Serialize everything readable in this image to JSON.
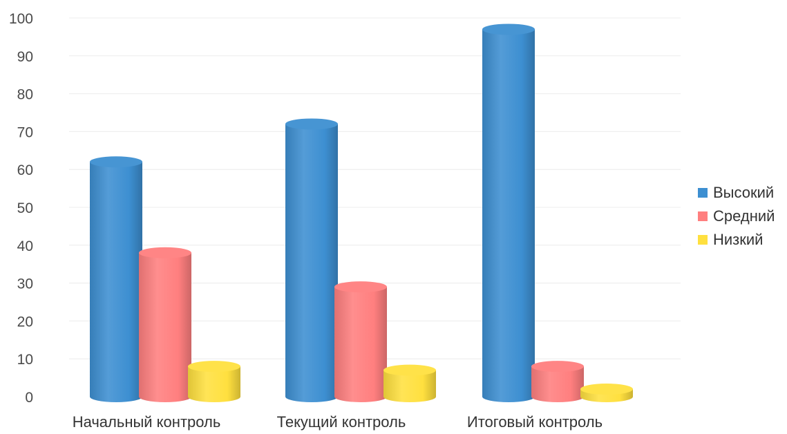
{
  "chart_data": {
    "type": "bar",
    "variant": "3d-cylinder",
    "categories": [
      "Начальный контроль",
      "Текущий контроль",
      "Итоговый контроль"
    ],
    "series": [
      {
        "name": "Высокий",
        "color": "#3d8fd1",
        "values": [
          62,
          72,
          97
        ]
      },
      {
        "name": "Средний",
        "color": "#ff7f7f",
        "values": [
          38,
          29,
          8
        ]
      },
      {
        "name": "Низкий",
        "color": "#ffe03f",
        "values": [
          8,
          7,
          2
        ]
      }
    ],
    "ylim": [
      0,
      100
    ],
    "yticks": [
      "0",
      "10",
      "20",
      "30",
      "40",
      "50",
      "60",
      "70",
      "80",
      "90",
      "100"
    ],
    "grid": true,
    "legend_position": "right"
  }
}
